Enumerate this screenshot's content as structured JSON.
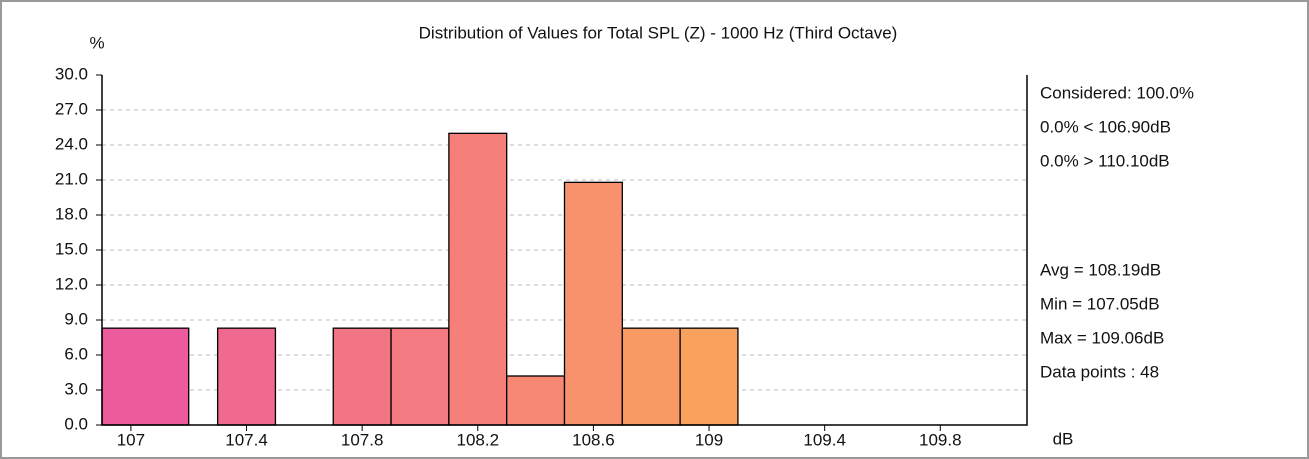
{
  "chart_data": {
    "type": "histogram",
    "title": "Distribution of Values for Total SPL (Z)  - 1000 Hz (Third Octave)",
    "y_label": "%",
    "x_label": "dB",
    "bins": [
      106.9,
      107.2,
      107.3,
      107.5,
      107.7,
      107.9,
      108.1,
      108.3,
      108.5,
      108.7,
      108.9,
      109.1
    ],
    "values": [
      8.3,
      0,
      8.3,
      0,
      8.3,
      8.3,
      25.0,
      4.2,
      20.8,
      8.3,
      8.3
    ],
    "colors": [
      "#ec5c9c",
      "#ee6494",
      "#f0698e",
      "#f16f88",
      "#f27584",
      "#f37a80",
      "#f5807a",
      "#f68874",
      "#f7926c",
      "#f89a64",
      "#f9a25e"
    ],
    "xlim": [
      106.9,
      110.1
    ],
    "xticks": [
      107,
      107.4,
      107.8,
      108.2,
      108.6,
      109,
      109.4,
      109.8
    ],
    "ylim": [
      0,
      30
    ],
    "yticks": [
      {
        "value": 0,
        "label": "0.0"
      },
      {
        "value": 3,
        "label": "3.0"
      },
      {
        "value": 6,
        "label": "6.0"
      },
      {
        "value": 9,
        "label": "9.0"
      },
      {
        "value": 12,
        "label": "12.0"
      },
      {
        "value": 15,
        "label": "15.0"
      },
      {
        "value": 18,
        "label": "18.0"
      },
      {
        "value": 21,
        "label": "21.0"
      },
      {
        "value": 24,
        "label": "24.0"
      },
      {
        "value": 27,
        "label": "27.0"
      },
      {
        "value": 30,
        "label": "30.0"
      }
    ],
    "grid": true,
    "annotations_top": [
      "Considered: 100.0%",
      "0.0%  < 106.90dB",
      "0.0%  > 110.10dB"
    ],
    "annotations_bottom": [
      "Avg = 108.19dB",
      "Min = 107.05dB",
      "Max = 109.06dB",
      "Data points : 48"
    ]
  }
}
